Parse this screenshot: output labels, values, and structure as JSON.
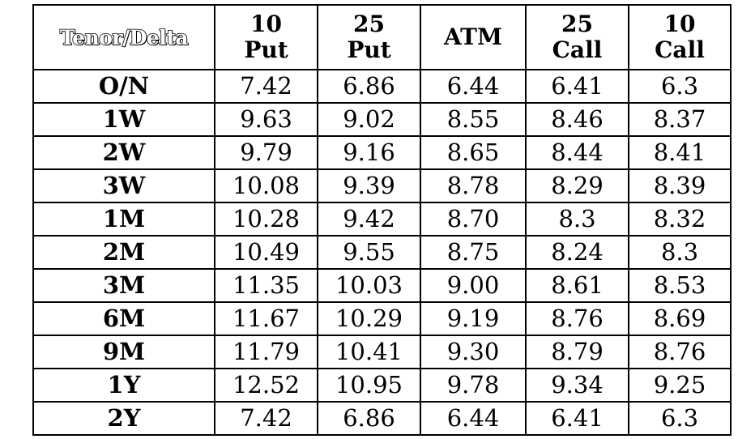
{
  "table": {
    "corner_label": "Tenor/Delta",
    "columns": [
      {
        "line1": "10",
        "line2": "Put"
      },
      {
        "line1": "25",
        "line2": "Put"
      },
      {
        "line1": "ATM",
        "line2": ""
      },
      {
        "line1": "25",
        "line2": "Call"
      },
      {
        "line1": "10",
        "line2": "Call"
      }
    ],
    "rows": [
      {
        "tenor": "O/N",
        "values": [
          "7.42",
          "6.86",
          "6.44",
          "6.41",
          "6.3"
        ]
      },
      {
        "tenor": "1W",
        "values": [
          "9.63",
          "9.02",
          "8.55",
          "8.46",
          "8.37"
        ]
      },
      {
        "tenor": "2W",
        "values": [
          "9.79",
          "9.16",
          "8.65",
          "8.44",
          "8.41"
        ]
      },
      {
        "tenor": "3W",
        "values": [
          "10.08",
          "9.39",
          "8.78",
          "8.29",
          "8.39"
        ]
      },
      {
        "tenor": "1M",
        "values": [
          "10.28",
          "9.42",
          "8.70",
          "8.3",
          "8.32"
        ]
      },
      {
        "tenor": "2M",
        "values": [
          "10.49",
          "9.55",
          "8.75",
          "8.24",
          "8.3"
        ]
      },
      {
        "tenor": "3M",
        "values": [
          "11.35",
          "10.03",
          "9.00",
          "8.61",
          "8.53"
        ]
      },
      {
        "tenor": "6M",
        "values": [
          "11.67",
          "10.29",
          "9.19",
          "8.76",
          "8.69"
        ]
      },
      {
        "tenor": "9M",
        "values": [
          "11.79",
          "10.41",
          "9.30",
          "8.79",
          "8.76"
        ]
      },
      {
        "tenor": "1Y",
        "values": [
          "12.52",
          "10.95",
          "9.78",
          "9.34",
          "9.25"
        ]
      },
      {
        "tenor": "2Y",
        "values": [
          "7.42",
          "6.86",
          "6.44",
          "6.41",
          "6.3"
        ]
      }
    ]
  }
}
